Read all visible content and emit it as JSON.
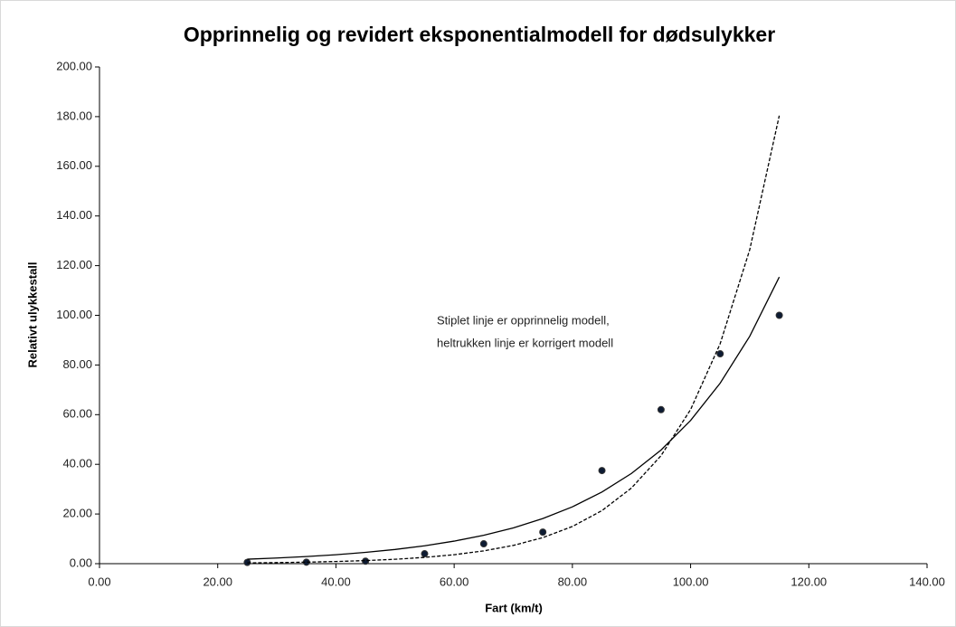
{
  "chart_data": {
    "type": "scatter",
    "title": "Opprinnelig og revidert eksponentialmodell for dødsulykker",
    "x_label": "Fart (km/t)",
    "y_label": "Relativt ulykkestall",
    "annotation": [
      "Stiplet linje er opprinnelig modell,",
      "heltrukken linje er korrigert modell"
    ],
    "xlim": [
      0,
      140
    ],
    "ylim": [
      0,
      200
    ],
    "xticks": [
      {
        "value": 0,
        "label": "0.00"
      },
      {
        "value": 20,
        "label": "20.00"
      },
      {
        "value": 40,
        "label": "40.00"
      },
      {
        "value": 60,
        "label": "60.00"
      },
      {
        "value": 80,
        "label": "80.00"
      },
      {
        "value": 100,
        "label": "100.00"
      },
      {
        "value": 120,
        "label": "120.00"
      },
      {
        "value": 140,
        "label": "140.00"
      }
    ],
    "yticks": [
      {
        "value": 0,
        "label": "0.00"
      },
      {
        "value": 20,
        "label": "20.00"
      },
      {
        "value": 40,
        "label": "40.00"
      },
      {
        "value": 60,
        "label": "60.00"
      },
      {
        "value": 80,
        "label": "80.00"
      },
      {
        "value": 100,
        "label": "100.00"
      },
      {
        "value": 120,
        "label": "120.00"
      },
      {
        "value": 140,
        "label": "140.00"
      },
      {
        "value": 160,
        "label": "160.00"
      },
      {
        "value": 180,
        "label": "180.00"
      },
      {
        "value": 200,
        "label": "200.00"
      }
    ],
    "grid": false,
    "series": [
      {
        "mode": "markers",
        "color": "#0d1b33",
        "x": [
          25,
          35,
          45,
          55,
          65,
          75,
          85,
          95,
          105,
          115
        ],
        "values": [
          0.5,
          0.6,
          1,
          4,
          8,
          12.7,
          37.5,
          62,
          84.5,
          100
        ]
      },
      {
        "mode": "line",
        "line_style": "dashed",
        "color": "#000000",
        "x": [
          25,
          30,
          35,
          40,
          45,
          50,
          55,
          60,
          65,
          70,
          75,
          80,
          85,
          90,
          95,
          100,
          105,
          110,
          115
        ],
        "values": [
          0.3,
          0.43,
          0.61,
          0.87,
          1.24,
          1.77,
          2.53,
          3.61,
          5.15,
          7.35,
          10.49,
          14.97,
          21.36,
          30.48,
          43.5,
          62.07,
          88.58,
          126.4,
          180.4
        ]
      },
      {
        "mode": "line",
        "line_style": "solid",
        "color": "#000000",
        "x": [
          25,
          30,
          35,
          40,
          45,
          50,
          55,
          60,
          65,
          70,
          75,
          80,
          85,
          90,
          95,
          100,
          105,
          110,
          115
        ],
        "values": [
          1.8,
          2.27,
          2.86,
          3.6,
          4.54,
          5.72,
          7.2,
          9.08,
          11.44,
          14.41,
          18.16,
          22.88,
          28.83,
          36.33,
          45.77,
          57.67,
          72.67,
          91.56,
          115.4
        ]
      }
    ]
  }
}
